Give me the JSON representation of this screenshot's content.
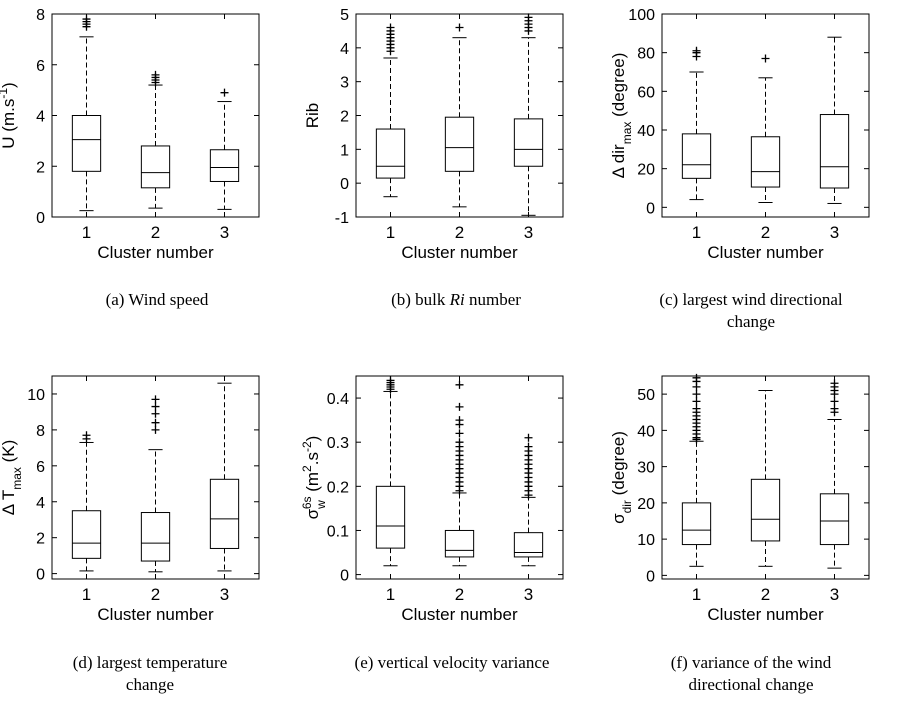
{
  "chart_data": [
    {
      "type": "box",
      "id": "a",
      "caption": "(a) Wind speed",
      "ylabel": "U (m.s-1)",
      "xlabel": "Cluster number",
      "ylim": [
        0,
        8
      ],
      "yticks": [
        0,
        2,
        4,
        6,
        8
      ],
      "categories": [
        "1",
        "2",
        "3"
      ],
      "boxes": [
        {
          "min": 0.25,
          "q1": 1.8,
          "median": 3.05,
          "q3": 4.0,
          "max": 7.1,
          "outliers": [
            7.5,
            7.6,
            7.7,
            7.8
          ]
        },
        {
          "min": 0.35,
          "q1": 1.15,
          "median": 1.75,
          "q3": 2.8,
          "max": 5.2,
          "outliers": [
            5.3,
            5.4,
            5.5,
            5.6
          ]
        },
        {
          "min": 0.3,
          "q1": 1.4,
          "median": 1.95,
          "q3": 2.65,
          "max": 4.55,
          "outliers": [
            4.9
          ]
        }
      ]
    },
    {
      "type": "box",
      "id": "b",
      "caption": "(b) bulk Ri number",
      "ylabel": "Rib",
      "xlabel": "Cluster number",
      "ylim": [
        -1,
        5
      ],
      "yticks": [
        -1,
        0,
        1,
        2,
        3,
        4,
        5
      ],
      "categories": [
        "1",
        "2",
        "3"
      ],
      "boxes": [
        {
          "min": -0.4,
          "q1": 0.15,
          "median": 0.5,
          "q3": 1.6,
          "max": 3.7,
          "outliers": [
            3.9,
            4.0,
            4.1,
            4.2,
            4.3,
            4.4,
            4.5,
            4.6
          ]
        },
        {
          "min": -0.7,
          "q1": 0.35,
          "median": 1.05,
          "q3": 1.95,
          "max": 4.3,
          "outliers": [
            4.6
          ]
        },
        {
          "min": -0.95,
          "q1": 0.5,
          "median": 1.0,
          "q3": 1.9,
          "max": 4.3,
          "outliers": [
            4.5,
            4.6,
            4.7,
            4.8,
            4.9
          ]
        }
      ]
    },
    {
      "type": "box",
      "id": "c",
      "caption": "(c) largest wind directional change",
      "ylabel": "Δ dir max (degree)",
      "xlabel": "Cluster number",
      "ylim": [
        -5,
        100
      ],
      "yticks": [
        0,
        20,
        40,
        60,
        80,
        100
      ],
      "categories": [
        "1",
        "2",
        "3"
      ],
      "boxes": [
        {
          "min": 4,
          "q1": 15,
          "median": 22,
          "q3": 38,
          "max": 70,
          "outliers": [
            78,
            80,
            81
          ]
        },
        {
          "min": 2.5,
          "q1": 10.5,
          "median": 18.5,
          "q3": 36.5,
          "max": 67,
          "outliers": [
            77
          ]
        },
        {
          "min": 2,
          "q1": 10,
          "median": 21,
          "q3": 48,
          "max": 88,
          "outliers": []
        }
      ]
    },
    {
      "type": "box",
      "id": "d",
      "caption": "(d) largest temperature change",
      "ylabel": "Δ T max (K)",
      "xlabel": "Cluster number",
      "ylim": [
        -0.3,
        11
      ],
      "yticks": [
        0,
        2,
        4,
        6,
        8,
        10
      ],
      "categories": [
        "1",
        "2",
        "3"
      ],
      "boxes": [
        {
          "min": 0.15,
          "q1": 0.85,
          "median": 1.7,
          "q3": 3.5,
          "max": 7.3,
          "outliers": [
            7.5,
            7.7
          ]
        },
        {
          "min": 0.1,
          "q1": 0.7,
          "median": 1.7,
          "q3": 3.4,
          "max": 6.9,
          "outliers": [
            8.0,
            8.4,
            8.9,
            9.3,
            9.7
          ]
        },
        {
          "min": 0.15,
          "q1": 1.4,
          "median": 3.05,
          "q3": 5.25,
          "max": 10.6,
          "outliers": []
        }
      ]
    },
    {
      "type": "box",
      "id": "e",
      "caption": "(e) vertical velocity variance",
      "ylabel": "σ w 6s (m2.s-2)",
      "xlabel": "Cluster number",
      "ylim": [
        -0.01,
        0.45
      ],
      "yticks": [
        0,
        0.1,
        0.2,
        0.3,
        0.4
      ],
      "categories": [
        "1",
        "2",
        "3"
      ],
      "boxes": [
        {
          "min": 0.02,
          "q1": 0.06,
          "median": 0.11,
          "q3": 0.2,
          "max": 0.415,
          "outliers": [
            0.42,
            0.425,
            0.43,
            0.435,
            0.44
          ]
        },
        {
          "min": 0.02,
          "q1": 0.04,
          "median": 0.055,
          "q3": 0.1,
          "max": 0.185,
          "outliers": [
            0.19,
            0.2,
            0.21,
            0.22,
            0.23,
            0.24,
            0.25,
            0.26,
            0.27,
            0.28,
            0.29,
            0.3,
            0.32,
            0.34,
            0.35,
            0.38,
            0.43
          ]
        },
        {
          "min": 0.02,
          "q1": 0.04,
          "median": 0.05,
          "q3": 0.095,
          "max": 0.175,
          "outliers": [
            0.18,
            0.19,
            0.2,
            0.21,
            0.22,
            0.23,
            0.24,
            0.25,
            0.26,
            0.27,
            0.28,
            0.29,
            0.31
          ]
        }
      ]
    },
    {
      "type": "box",
      "id": "f",
      "caption": "(f) variance of the wind directional change",
      "ylabel": "σ dir (degree)",
      "xlabel": "Cluster number",
      "ylim": [
        -1,
        55
      ],
      "yticks": [
        0,
        10,
        20,
        30,
        40,
        50
      ],
      "categories": [
        "1",
        "2",
        "3"
      ],
      "boxes": [
        {
          "min": 2.5,
          "q1": 8.5,
          "median": 12.5,
          "q3": 20,
          "max": 37,
          "outliers": [
            37.5,
            38,
            39,
            40,
            41,
            42,
            43,
            44,
            45,
            46,
            48,
            50,
            52,
            53.5,
            54.5
          ]
        },
        {
          "min": 2.5,
          "q1": 9.5,
          "median": 15.5,
          "q3": 26.5,
          "max": 51,
          "outliers": []
        },
        {
          "min": 2,
          "q1": 8.5,
          "median": 15,
          "q3": 22.5,
          "max": 43,
          "outliers": [
            45,
            46,
            48,
            50,
            51,
            52,
            53
          ]
        }
      ]
    }
  ]
}
